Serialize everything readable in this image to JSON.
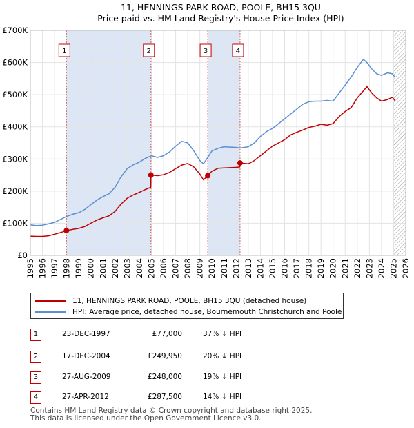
{
  "chart_data": {
    "type": "line",
    "title": "11, HENNINGS PARK ROAD, POOLE, BH15 3QU",
    "subtitle": "Price paid vs. HM Land Registry's House Price Index (HPI)",
    "xlim": [
      1995,
      2026
    ],
    "ylim": [
      0,
      700000
    ],
    "y_ticks": [
      0,
      100000,
      200000,
      300000,
      400000,
      500000,
      600000,
      700000
    ],
    "y_tick_labels": [
      "£0",
      "£100K",
      "£200K",
      "£300K",
      "£400K",
      "£500K",
      "£600K",
      "£700K"
    ],
    "x_ticks": [
      1995,
      1996,
      1997,
      1998,
      1999,
      2000,
      2001,
      2002,
      2003,
      2004,
      2005,
      2006,
      2007,
      2008,
      2009,
      2010,
      2011,
      2012,
      2013,
      2014,
      2015,
      2016,
      2017,
      2018,
      2019,
      2020,
      2021,
      2022,
      2023,
      2024,
      2025,
      2026
    ],
    "x_tick_labels": [
      "1995",
      "1996",
      "1997",
      "1998",
      "1999",
      "2000",
      "2001",
      "2002",
      "2003",
      "2004",
      "2005",
      "2006",
      "2007",
      "2008",
      "2009",
      "2010",
      "2011",
      "2012",
      "2013",
      "2014",
      "2015",
      "2016",
      "2017",
      "2018",
      "2019",
      "2020",
      "2021",
      "2022",
      "2023",
      "2024",
      "2025",
      "2026"
    ],
    "shaded_ranges": [
      [
        1997.98,
        2004.96
      ],
      [
        2009.65,
        2012.32
      ]
    ],
    "hatched_from": 2025.0,
    "series": [
      {
        "name": "11, HENNINGS PARK ROAD, POOLE, BH15 3QU (detached house)",
        "color": "#c00000",
        "x": [
          1995.0,
          1995.5,
          1996.0,
          1996.5,
          1997.0,
          1997.5,
          1997.98,
          1998.5,
          1999.0,
          1999.5,
          2000.0,
          2000.5,
          2001.0,
          2001.5,
          2002.0,
          2002.5,
          2003.0,
          2003.5,
          2004.0,
          2004.5,
          2004.95,
          2004.96,
          2005.5,
          2006.0,
          2006.5,
          2007.0,
          2007.5,
          2008.0,
          2008.5,
          2009.0,
          2009.3,
          2009.65,
          2010.0,
          2010.5,
          2011.0,
          2011.5,
          2012.0,
          2012.3,
          2012.32,
          2013.0,
          2013.5,
          2014.0,
          2014.5,
          2015.0,
          2015.5,
          2016.0,
          2016.5,
          2017.0,
          2017.5,
          2018.0,
          2018.5,
          2019.0,
          2019.5,
          2020.0,
          2020.5,
          2021.0,
          2021.5,
          2022.0,
          2022.5,
          2022.8,
          2023.2,
          2023.6,
          2024.0,
          2024.5,
          2024.9,
          2025.1
        ],
        "values": [
          60000,
          59000,
          59000,
          61000,
          66000,
          71000,
          77000,
          81000,
          84000,
          90000,
          100000,
          110000,
          117000,
          123000,
          137000,
          160000,
          178000,
          188000,
          196000,
          205000,
          212000,
          249950,
          248000,
          251000,
          258000,
          270000,
          281000,
          286000,
          275000,
          253000,
          235000,
          248000,
          262000,
          271000,
          272000,
          273000,
          274000,
          275000,
          287500,
          285000,
          295000,
          310000,
          325000,
          340000,
          350000,
          360000,
          375000,
          383000,
          390000,
          398000,
          402000,
          408000,
          405000,
          410000,
          432000,
          448000,
          460000,
          490000,
          512000,
          525000,
          505000,
          490000,
          480000,
          485000,
          492000,
          482000
        ]
      },
      {
        "name": "HPI: Average price, detached house, Bournemouth Christchurch and Poole",
        "color": "#5b8fd0",
        "x": [
          1995.0,
          1995.5,
          1996.0,
          1996.5,
          1997.0,
          1997.5,
          1998.0,
          1998.5,
          1999.0,
          1999.5,
          2000.0,
          2000.5,
          2001.0,
          2001.5,
          2002.0,
          2002.5,
          2003.0,
          2003.5,
          2004.0,
          2004.5,
          2005.0,
          2005.5,
          2006.0,
          2006.5,
          2007.0,
          2007.5,
          2008.0,
          2008.5,
          2009.0,
          2009.3,
          2009.65,
          2010.0,
          2010.5,
          2011.0,
          2011.5,
          2012.0,
          2012.3,
          2013.0,
          2013.5,
          2014.0,
          2014.5,
          2015.0,
          2015.5,
          2016.0,
          2016.5,
          2017.0,
          2017.5,
          2018.0,
          2018.5,
          2019.0,
          2019.5,
          2020.0,
          2020.5,
          2021.0,
          2021.5,
          2022.0,
          2022.5,
          2022.8,
          2023.2,
          2023.6,
          2024.0,
          2024.5,
          2024.9,
          2025.1
        ],
        "values": [
          95000,
          93000,
          94000,
          98000,
          103000,
          112000,
          121000,
          128000,
          133000,
          143000,
          158000,
          172000,
          183000,
          192000,
          212000,
          245000,
          270000,
          282000,
          290000,
          302000,
          310000,
          305000,
          310000,
          322000,
          340000,
          355000,
          350000,
          325000,
          295000,
          285000,
          305000,
          325000,
          333000,
          338000,
          337000,
          336000,
          334000,
          338000,
          350000,
          370000,
          385000,
          395000,
          410000,
          425000,
          440000,
          455000,
          470000,
          478000,
          480000,
          480000,
          482000,
          480000,
          505000,
          530000,
          555000,
          585000,
          610000,
          600000,
          580000,
          565000,
          560000,
          568000,
          565000,
          555000
        ]
      }
    ],
    "markers": [
      {
        "label": "1",
        "x": 1997.98,
        "y": 77000
      },
      {
        "label": "2",
        "x": 2004.96,
        "y": 249950
      },
      {
        "label": "3",
        "x": 2009.65,
        "y": 248000
      },
      {
        "label": "4",
        "x": 2012.32,
        "y": 287500
      }
    ]
  },
  "legend": [
    {
      "label": "11, HENNINGS PARK ROAD, POOLE, BH15 3QU (detached house)",
      "color": "#c00000"
    },
    {
      "label": "HPI: Average price, detached house, Bournemouth Christchurch and Poole",
      "color": "#5b8fd0"
    }
  ],
  "transactions": [
    {
      "num": "1",
      "date": "23-DEC-1997",
      "price": "£77,000",
      "hpi": "37% ↓ HPI"
    },
    {
      "num": "2",
      "date": "17-DEC-2004",
      "price": "£249,950",
      "hpi": "20% ↓ HPI"
    },
    {
      "num": "3",
      "date": "27-AUG-2009",
      "price": "£248,000",
      "hpi": "19% ↓ HPI"
    },
    {
      "num": "4",
      "date": "27-APR-2012",
      "price": "£287,500",
      "hpi": "14% ↓ HPI"
    }
  ],
  "footer": {
    "line1": "Contains HM Land Registry data © Crown copyright and database right 2025.",
    "line2": "This data is licensed under the Open Government Licence v3.0."
  }
}
